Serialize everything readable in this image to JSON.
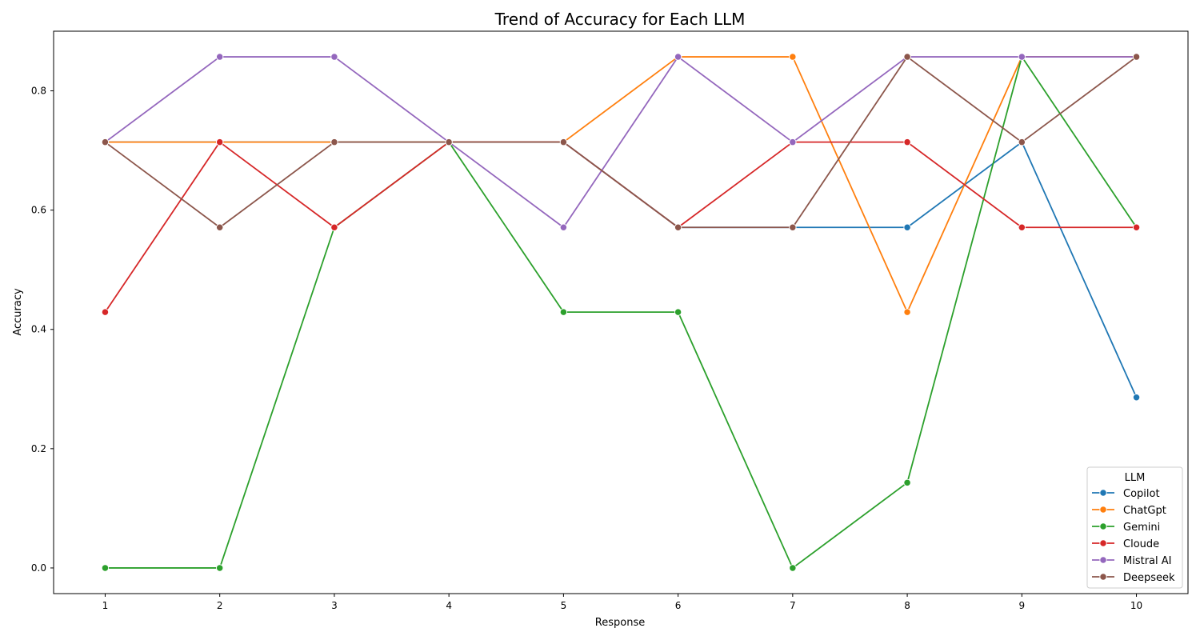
{
  "chart_data": {
    "type": "line",
    "title": "Trend of Accuracy for Each LLM",
    "xlabel": "Response",
    "ylabel": "Accuracy",
    "x": [
      1,
      2,
      3,
      4,
      5,
      6,
      7,
      8,
      9,
      10
    ],
    "x_tick_labels": [
      "1",
      "2",
      "3",
      "4",
      "5",
      "6",
      "7",
      "8",
      "9",
      "10"
    ],
    "xlim": [
      0.55,
      10.45
    ],
    "ylim": [
      -0.043,
      0.9
    ],
    "y_ticks": [
      0.0,
      0.2,
      0.4,
      0.6,
      0.8
    ],
    "y_tick_labels": [
      "0.0",
      "0.2",
      "0.4",
      "0.6",
      "0.8"
    ],
    "grid": false,
    "legend": {
      "title": "LLM",
      "placement": "lower-right"
    },
    "series": [
      {
        "name": "Copilot",
        "color": "#1f77b4",
        "values": [
          0.714,
          0.714,
          0.714,
          0.714,
          0.714,
          0.571,
          0.571,
          0.571,
          0.714,
          0.286
        ]
      },
      {
        "name": "ChatGpt",
        "color": "#ff7f0e",
        "values": [
          0.714,
          0.714,
          0.714,
          0.714,
          0.714,
          0.857,
          0.857,
          0.429,
          0.857,
          0.857
        ]
      },
      {
        "name": "Gemini",
        "color": "#2ca02c",
        "values": [
          0.0,
          0.0,
          0.571,
          0.714,
          0.429,
          0.429,
          0.0,
          0.143,
          0.857,
          0.571
        ]
      },
      {
        "name": "Cloude",
        "color": "#d62728",
        "values": [
          0.429,
          0.714,
          0.571,
          0.714,
          0.714,
          0.571,
          0.714,
          0.714,
          0.571,
          0.571
        ]
      },
      {
        "name": "Mistral AI",
        "color": "#9467bd",
        "values": [
          0.714,
          0.857,
          0.857,
          0.714,
          0.571,
          0.857,
          0.714,
          0.857,
          0.857,
          0.857
        ]
      },
      {
        "name": "Deepseek",
        "color": "#8c564b",
        "values": [
          0.714,
          0.571,
          0.714,
          0.714,
          0.714,
          0.571,
          0.571,
          0.857,
          0.714,
          0.857
        ]
      }
    ]
  }
}
